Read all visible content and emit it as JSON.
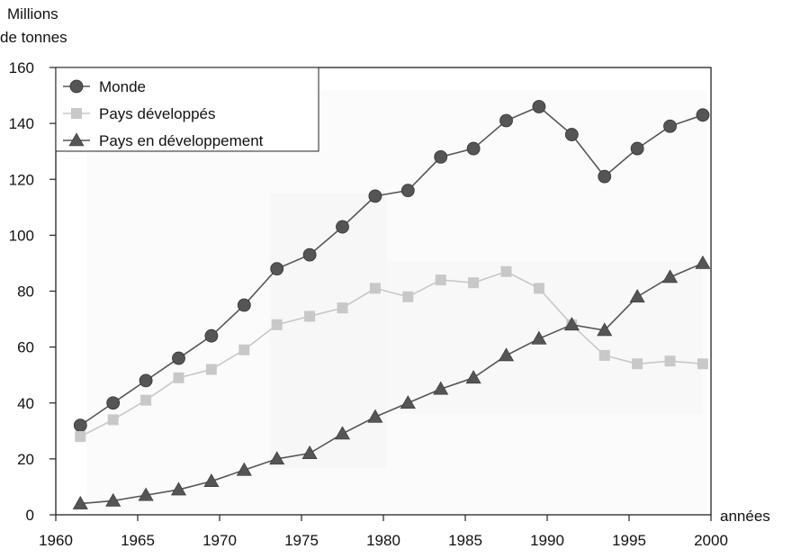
{
  "chart_data": {
    "type": "line",
    "ylabel_line1": "Millions",
    "ylabel_line2": "de tonnes",
    "xlabel": "années",
    "xlim": [
      1960,
      2000
    ],
    "ylim": [
      0,
      160
    ],
    "xticks": [
      1960,
      1965,
      1970,
      1975,
      1980,
      1985,
      1990,
      1995,
      2000
    ],
    "yticks": [
      0,
      20,
      40,
      60,
      80,
      100,
      120,
      140,
      160
    ],
    "grid": false,
    "legend_position": "top-left",
    "series": [
      {
        "name": "Monde",
        "marker": "circle",
        "color": "#555555",
        "x": [
          1961.5,
          1963.5,
          1965.5,
          1967.5,
          1969.5,
          1971.5,
          1973.5,
          1975.5,
          1977.5,
          1979.5,
          1981.5,
          1983.5,
          1985.5,
          1987.5,
          1989.5,
          1991.5,
          1993.5,
          1995.5,
          1997.5,
          1999.5
        ],
        "values": [
          32,
          40,
          48,
          56,
          64,
          75,
          88,
          93,
          103,
          114,
          116,
          128,
          131,
          141,
          146,
          136,
          121,
          131,
          139,
          143
        ]
      },
      {
        "name": "Pays développés",
        "marker": "square",
        "color": "#c8c8c8",
        "x": [
          1961.5,
          1963.5,
          1965.5,
          1967.5,
          1969.5,
          1971.5,
          1973.5,
          1975.5,
          1977.5,
          1979.5,
          1981.5,
          1983.5,
          1985.5,
          1987.5,
          1989.5,
          1991.5,
          1993.5,
          1995.5,
          1997.5,
          1999.5
        ],
        "values": [
          28,
          34,
          41,
          49,
          52,
          59,
          68,
          71,
          74,
          81,
          78,
          84,
          83,
          87,
          81,
          68,
          57,
          54,
          55,
          54
        ]
      },
      {
        "name": "Pays en développement",
        "marker": "triangle",
        "color": "#555555",
        "x": [
          1961.5,
          1963.5,
          1965.5,
          1967.5,
          1969.5,
          1971.5,
          1973.5,
          1975.5,
          1977.5,
          1979.5,
          1981.5,
          1983.5,
          1985.5,
          1987.5,
          1989.5,
          1991.5,
          1993.5,
          1995.5,
          1997.5,
          1999.5
        ],
        "values": [
          4,
          5,
          7,
          9,
          12,
          16,
          20,
          22,
          29,
          35,
          40,
          45,
          49,
          57,
          63,
          68,
          66,
          78,
          85,
          90
        ]
      }
    ]
  }
}
